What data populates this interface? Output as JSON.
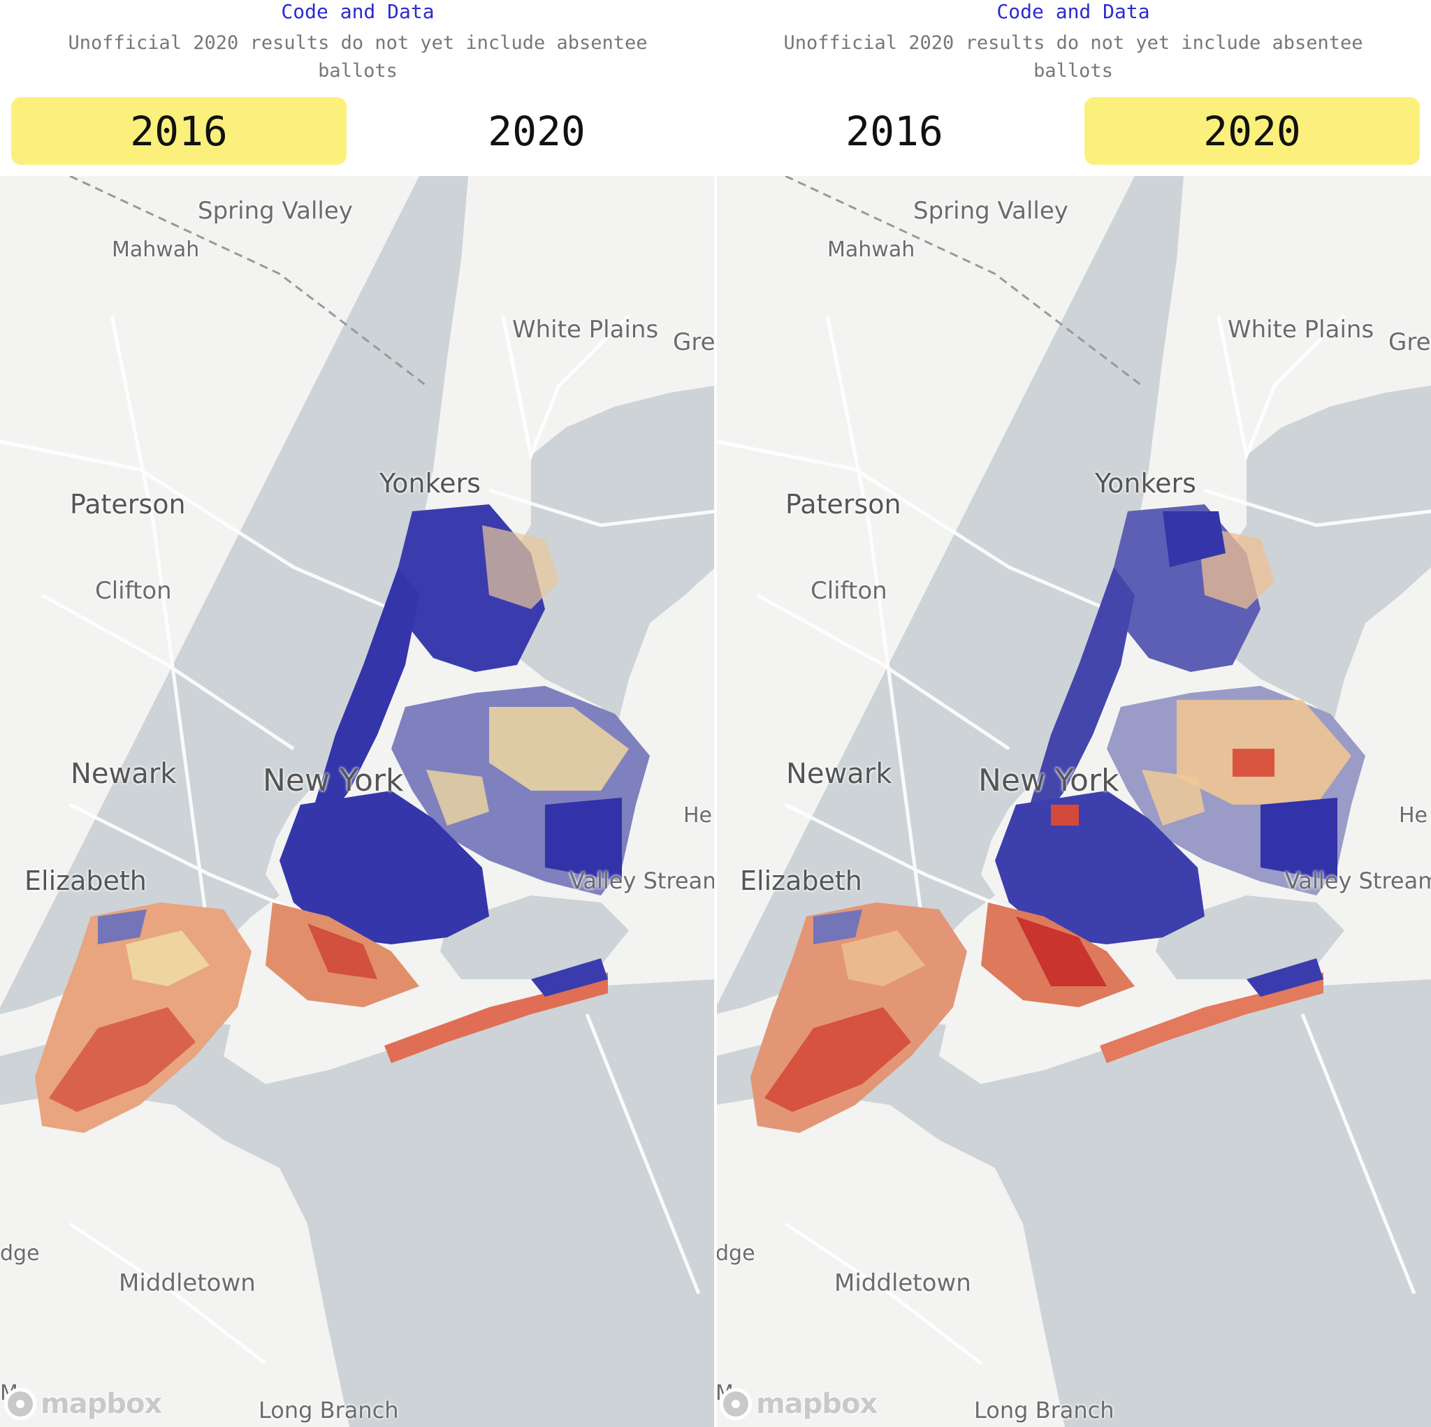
{
  "panels": [
    {
      "code_link": "Code and Data",
      "note": "Unofficial 2020 results do not yet include absentee ballots",
      "years": [
        "2016",
        "2020"
      ],
      "selected_year": "2016"
    },
    {
      "code_link": "Code and Data",
      "note": "Unofficial 2020 results do not yet include absentee ballots",
      "years": [
        "2016",
        "2020"
      ],
      "selected_year": "2020"
    }
  ],
  "map_labels": {
    "spring_valley": "Spring Valley",
    "mahwah": "Mahwah",
    "white_plains": "White Plains",
    "gre": "Gre",
    "yonkers": "Yonkers",
    "paterson": "Paterson",
    "clifton": "Clifton",
    "newark": "Newark",
    "new_york": "New York",
    "he": "He",
    "elizabeth": "Elizabeth",
    "valley_stream": "Valley Stream",
    "dge": "dge",
    "middletown": "Middletown",
    "long_branch": "Long Branch",
    "m": "M"
  },
  "attribution": "mapbox",
  "colors": {
    "accent_link": "#2b2bd1",
    "selected_year_bg": "#fcf07c",
    "water": "#cdd3d6",
    "land": "#f3f3f2",
    "dem_strong": "#2d2fa7",
    "dem_mid": "#6a6cb6",
    "dem_light": "#a6a8cc",
    "neutral": "#efe2a5",
    "rep_light": "#ecae84",
    "rep_mid": "#df7a5e",
    "rep_strong": "#cc3f35"
  }
}
